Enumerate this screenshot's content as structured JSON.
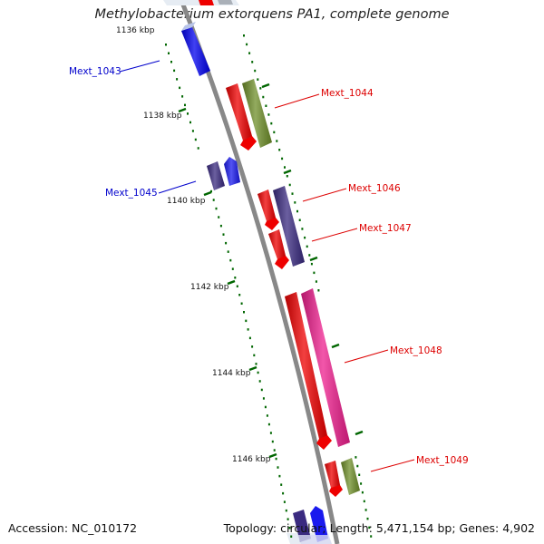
{
  "title": "Methylobacterium extorquens PA1, complete genome",
  "footer": {
    "accession": "Accession: NC_010172",
    "summary": "Topology: circular; Length: 5,471,154 bp; Genes: 4,902"
  },
  "colors": {
    "forward_label": "#dd0000",
    "reverse_label": "#0000cc",
    "tick": "#006600",
    "backbone": "#888888"
  },
  "ticks": [
    "1136 kbp",
    "1138 kbp",
    "1140 kbp",
    "1142 kbp",
    "1144 kbp",
    "1146 kbp"
  ],
  "genes": [
    {
      "name": "Mext_1043",
      "strand": "reverse",
      "color": "#0000ee"
    },
    {
      "name": "Mext_1044",
      "strand": "forward",
      "color": "#ee0000"
    },
    {
      "name": "Mext_1045",
      "strand": "reverse",
      "color": "#3a2a80"
    },
    {
      "name": "Mext_1046",
      "strand": "forward",
      "color": "#ee0000"
    },
    {
      "name": "Mext_1047",
      "strand": "forward",
      "color": "#ee0000"
    },
    {
      "name": "Mext_1048",
      "strand": "forward",
      "color": "#ee0000"
    },
    {
      "name": "Mext_1049",
      "strand": "forward",
      "color": "#ee0000"
    }
  ]
}
